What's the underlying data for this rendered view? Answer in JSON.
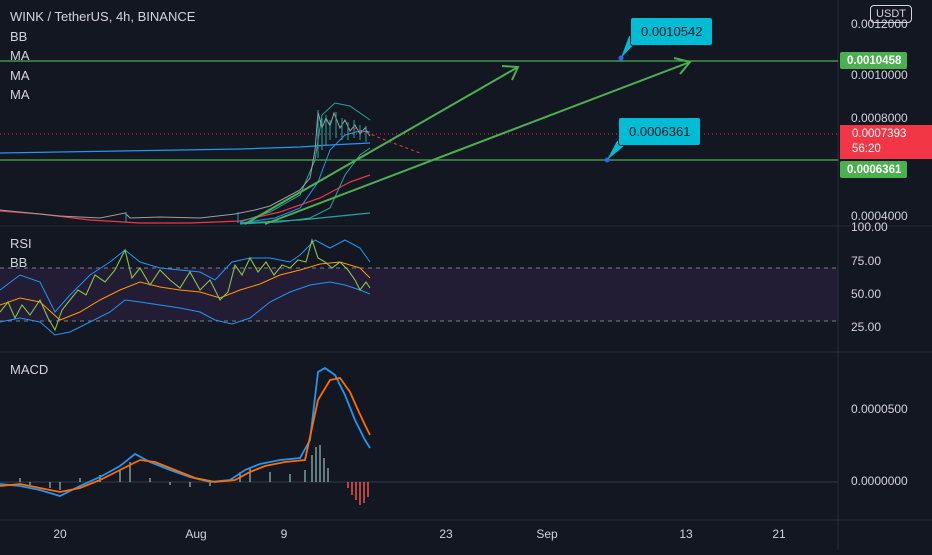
{
  "header": {
    "title": "WINK / TetherUS, 4h, BINANCE",
    "indicators": [
      "BB",
      "MA",
      "MA",
      "MA"
    ],
    "currency_badge": "USDT"
  },
  "price_axis": {
    "ticks": [
      "0.0012000",
      "0.0010000",
      "0.0008000",
      "0.0004000"
    ],
    "tag_top_line": "0.0010458",
    "tag_current": "0.0007393",
    "tag_countdown": "56:20",
    "tag_bottom_line": "0.0006361"
  },
  "callouts": {
    "upper": "0.0010542",
    "lower": "0.0006361"
  },
  "rsi_pane": {
    "labels": [
      "RSI",
      "BB"
    ],
    "ticks": [
      "100.00",
      "75.00",
      "50.00",
      "25.00"
    ]
  },
  "macd_pane": {
    "label": "MACD",
    "ticks": [
      "0.0000500",
      "0.0000000"
    ]
  },
  "time_axis": {
    "labels": [
      "20",
      "Aug",
      "9",
      "23",
      "Sep",
      "13",
      "21"
    ]
  },
  "colors": {
    "background": "#131722",
    "green_line": "#4caf50",
    "callout": "#00bcd4",
    "current_price": "#f23645",
    "bb_band": "#2196f3",
    "macd": "#2962ff",
    "signal": "#ff6d00"
  }
}
